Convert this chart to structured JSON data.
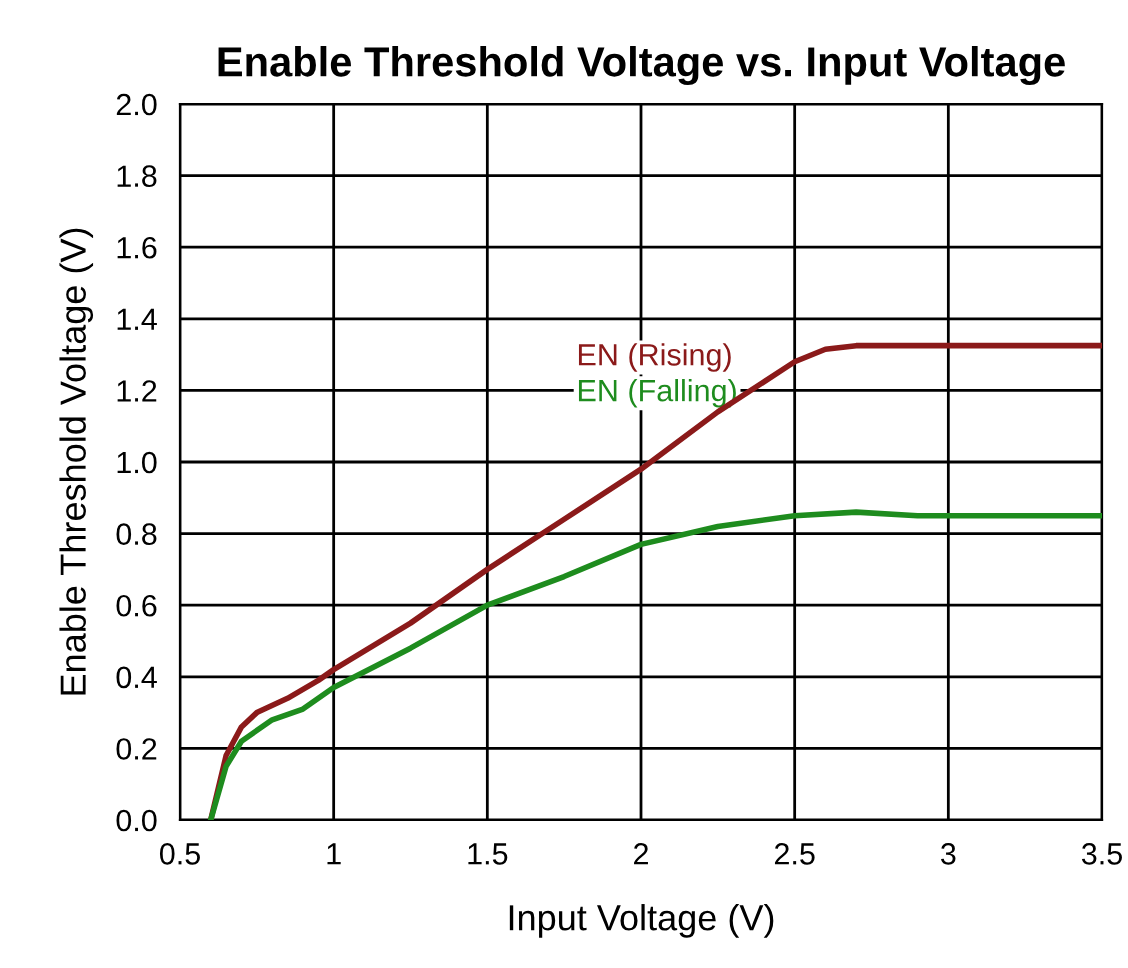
{
  "chart_data": {
    "type": "line",
    "title": "Enable Threshold Voltage vs. Input Voltage",
    "xlabel": "Input Voltage (V)",
    "ylabel": "Enable Threshold Voltage (V)",
    "xlim": [
      0.5,
      3.5
    ],
    "xticks": [
      0.5,
      1,
      1.5,
      2,
      2.5,
      3,
      3.5
    ],
    "ylim": [
      0,
      2
    ],
    "yticks": [
      {
        "value": 0,
        "label": "0.0"
      },
      {
        "value": 0.2,
        "label": "0.2"
      },
      {
        "value": 0.4,
        "label": "0.4"
      },
      {
        "value": 0.6,
        "label": "0.6"
      },
      {
        "value": 0.8,
        "label": "0.8"
      },
      {
        "value": 1,
        "label": "1.0"
      },
      {
        "value": 1.2,
        "label": "1.2"
      },
      {
        "value": 1.4,
        "label": "1.4"
      },
      {
        "value": 1.6,
        "label": "1.6"
      },
      {
        "value": 1.8,
        "label": "1.8"
      },
      {
        "value": 2,
        "label": "2.0"
      }
    ],
    "grid": true,
    "legend": false,
    "marker": "none",
    "line_style": "solid",
    "series": [
      {
        "name": "EN (Rising)",
        "color": "#8b1a1a",
        "x": [
          0.6,
          0.65,
          0.7,
          0.75,
          0.85,
          0.95,
          1.0,
          1.25,
          1.5,
          1.75,
          2.0,
          2.25,
          2.5,
          2.6,
          2.7,
          3.0,
          3.5
        ],
        "values": [
          0,
          0.18,
          0.26,
          0.3,
          0.34,
          0.39,
          0.42,
          0.55,
          0.7,
          0.84,
          0.98,
          1.14,
          1.28,
          1.315,
          1.325,
          1.325,
          1.325
        ]
      },
      {
        "name": "EN (Falling)",
        "color": "#1e8c1e",
        "x": [
          0.6,
          0.65,
          0.7,
          0.8,
          0.9,
          1.0,
          1.25,
          1.5,
          1.75,
          2.0,
          2.25,
          2.5,
          2.7,
          2.9,
          3.5
        ],
        "values": [
          0,
          0.15,
          0.22,
          0.28,
          0.31,
          0.37,
          0.48,
          0.6,
          0.68,
          0.77,
          0.82,
          0.85,
          0.86,
          0.85,
          0.85
        ]
      }
    ]
  }
}
